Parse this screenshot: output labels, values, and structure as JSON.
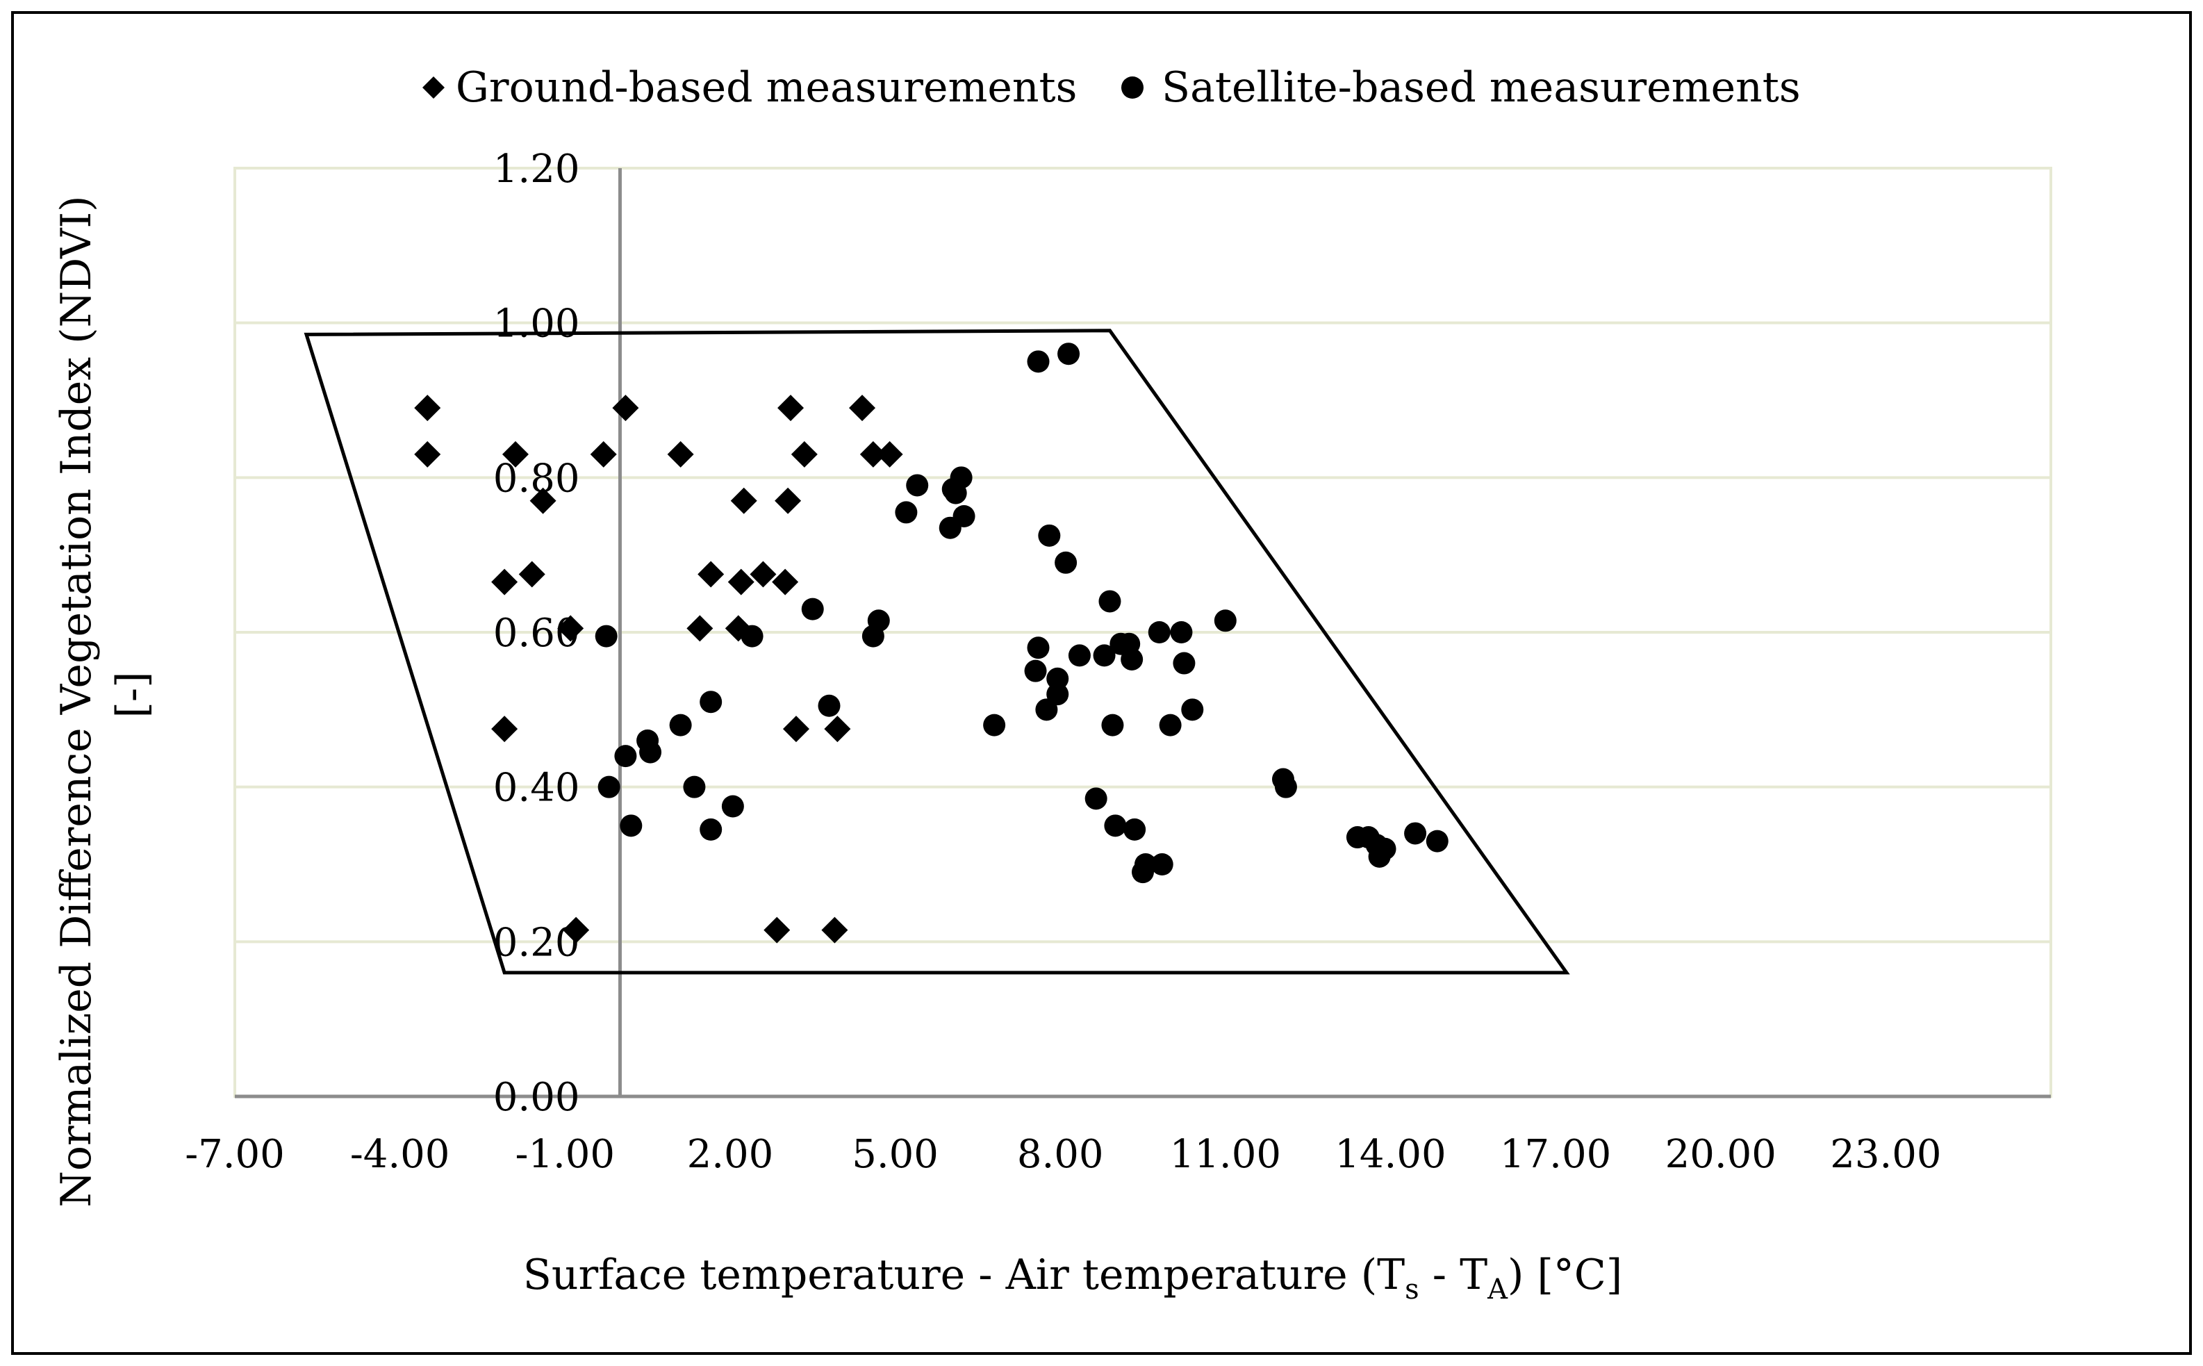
{
  "chart_data": {
    "type": "scatter",
    "title": "",
    "xlabel_parts": [
      "Surface temperature - Air temperature (T",
      "s",
      " - T",
      "A",
      ") [°C]"
    ],
    "ylabel_lines": [
      "Normalized Difference Vegetation Index (NDVI)",
      "[-]"
    ],
    "xlim": [
      -7,
      26
    ],
    "ylim": [
      0,
      1.2
    ],
    "x_ticks": [
      -7,
      -4,
      -1,
      2,
      5,
      8,
      11,
      14,
      17,
      20,
      23
    ],
    "x_tick_labels": [
      "-7.00",
      "-4.00",
      "-1.00",
      "2.00",
      "5.00",
      "8.00",
      "11.00",
      "14.00",
      "17.00",
      "20.00",
      "23.00"
    ],
    "y_ticks": [
      0,
      0.2,
      0.4,
      0.6,
      0.8,
      1.0,
      1.2
    ],
    "y_tick_labels": [
      "0.00",
      "0.20",
      "0.40",
      "0.60",
      "0.80",
      "1.00",
      "1.20"
    ],
    "grid": "horizontal",
    "legend_position": "top-center",
    "legend": [
      {
        "name": "Ground-based measurements",
        "marker": "diamond"
      },
      {
        "name": "Satellite-based measurements",
        "marker": "circle"
      }
    ],
    "series": [
      {
        "name": "Ground-based measurements",
        "marker": "diamond",
        "color": "#000000",
        "points": [
          [
            -3.5,
            0.89
          ],
          [
            -3.5,
            0.83
          ],
          [
            -1.9,
            0.83
          ],
          [
            -1.4,
            0.77
          ],
          [
            -1.6,
            0.675
          ],
          [
            -2.1,
            0.665
          ],
          [
            -0.9,
            0.605
          ],
          [
            -2.1,
            0.475
          ],
          [
            -0.8,
            0.215
          ],
          [
            0.1,
            0.89
          ],
          [
            -0.3,
            0.83
          ],
          [
            1.1,
            0.83
          ],
          [
            2.25,
            0.77
          ],
          [
            1.45,
            0.605
          ],
          [
            2.6,
            0.675
          ],
          [
            2.2,
            0.665
          ],
          [
            2.15,
            0.605
          ],
          [
            1.65,
            0.675
          ],
          [
            3.0,
            0.665
          ],
          [
            3.1,
            0.89
          ],
          [
            3.05,
            0.77
          ],
          [
            3.35,
            0.83
          ],
          [
            4.4,
            0.89
          ],
          [
            4.6,
            0.83
          ],
          [
            4.9,
            0.83
          ],
          [
            3.2,
            0.475
          ],
          [
            3.95,
            0.475
          ],
          [
            2.85,
            0.215
          ],
          [
            3.9,
            0.215
          ]
        ]
      },
      {
        "name": "Satellite-based measurements",
        "marker": "circle",
        "color": "#000000",
        "points": [
          [
            7.6,
            0.95
          ],
          [
            8.15,
            0.96
          ],
          [
            5.4,
            0.79
          ],
          [
            6.05,
            0.785
          ],
          [
            6.2,
            0.8
          ],
          [
            6.1,
            0.78
          ],
          [
            5.2,
            0.755
          ],
          [
            6.25,
            0.75
          ],
          [
            6.0,
            0.735
          ],
          [
            7.8,
            0.725
          ],
          [
            8.1,
            0.69
          ],
          [
            8.9,
            0.64
          ],
          [
            3.5,
            0.63
          ],
          [
            4.7,
            0.615
          ],
          [
            11.0,
            0.615
          ],
          [
            4.6,
            0.595
          ],
          [
            2.4,
            0.595
          ],
          [
            -0.25,
            0.595
          ],
          [
            9.8,
            0.6
          ],
          [
            10.2,
            0.6
          ],
          [
            9.1,
            0.585
          ],
          [
            9.25,
            0.585
          ],
          [
            7.6,
            0.58
          ],
          [
            8.35,
            0.57
          ],
          [
            8.8,
            0.57
          ],
          [
            9.3,
            0.565
          ],
          [
            10.25,
            0.56
          ],
          [
            7.55,
            0.55
          ],
          [
            7.95,
            0.54
          ],
          [
            7.95,
            0.52
          ],
          [
            1.65,
            0.51
          ],
          [
            3.8,
            0.505
          ],
          [
            7.75,
            0.5
          ],
          [
            10.4,
            0.5
          ],
          [
            6.8,
            0.48
          ],
          [
            8.95,
            0.48
          ],
          [
            10.0,
            0.48
          ],
          [
            1.1,
            0.48
          ],
          [
            0.5,
            0.46
          ],
          [
            0.55,
            0.445
          ],
          [
            0.1,
            0.44
          ],
          [
            1.35,
            0.4
          ],
          [
            -0.2,
            0.4
          ],
          [
            12.05,
            0.41
          ],
          [
            12.1,
            0.4
          ],
          [
            2.05,
            0.375
          ],
          [
            8.65,
            0.385
          ],
          [
            0.2,
            0.35
          ],
          [
            1.65,
            0.345
          ],
          [
            9.0,
            0.35
          ],
          [
            9.35,
            0.345
          ],
          [
            13.4,
            0.335
          ],
          [
            13.6,
            0.335
          ],
          [
            14.45,
            0.34
          ],
          [
            14.85,
            0.33
          ],
          [
            13.75,
            0.325
          ],
          [
            13.9,
            0.32
          ],
          [
            13.8,
            0.31
          ],
          [
            9.55,
            0.3
          ],
          [
            9.5,
            0.29
          ],
          [
            9.85,
            0.3
          ]
        ]
      }
    ],
    "envelope_polygon": [
      [
        -5.7,
        0.985
      ],
      [
        8.9,
        0.99
      ],
      [
        17.2,
        0.16
      ],
      [
        -2.1,
        0.16
      ]
    ],
    "vertical_reference_x": 0
  }
}
